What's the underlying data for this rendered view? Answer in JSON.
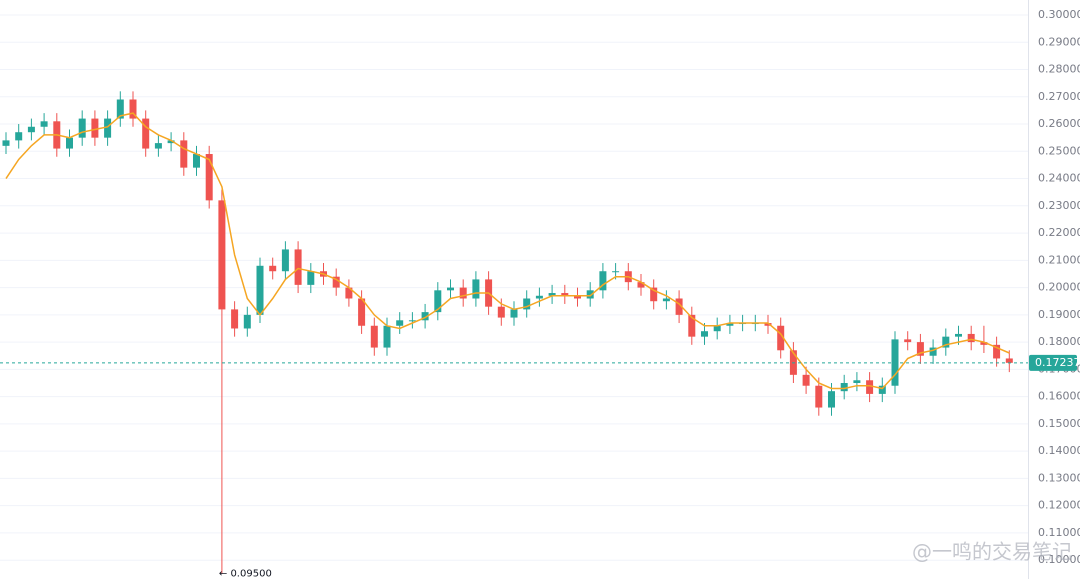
{
  "chart_data": {
    "type": "candlestick",
    "open": [
      0.252,
      0.254,
      0.257,
      0.259,
      0.261,
      0.251,
      0.255,
      0.262,
      0.255,
      0.262,
      0.269,
      0.262,
      0.251,
      0.253,
      0.254,
      0.244,
      0.249,
      0.232,
      0.192,
      0.185,
      0.19,
      0.208,
      0.206,
      0.214,
      0.201,
      0.206,
      0.204,
      0.2,
      0.196,
      0.186,
      0.178,
      0.186,
      0.188,
      0.188,
      0.191,
      0.199,
      0.2,
      0.196,
      0.203,
      0.193,
      0.189,
      0.192,
      0.196,
      0.197,
      0.198,
      0.197,
      0.196,
      0.199,
      0.206,
      0.206,
      0.202,
      0.2,
      0.195,
      0.196,
      0.19,
      0.182,
      0.184,
      0.186,
      0.187,
      0.187,
      0.187,
      0.186,
      0.177,
      0.168,
      0.164,
      0.156,
      0.162,
      0.165,
      0.166,
      0.161,
      0.164,
      0.181,
      0.18,
      0.175,
      0.178,
      0.182,
      0.183,
      0.18,
      0.179,
      0.174
    ],
    "high": [
      0.257,
      0.26,
      0.262,
      0.264,
      0.264,
      0.258,
      0.265,
      0.265,
      0.265,
      0.272,
      0.272,
      0.265,
      0.256,
      0.257,
      0.257,
      0.252,
      0.252,
      0.236,
      0.195,
      0.193,
      0.211,
      0.211,
      0.217,
      0.217,
      0.209,
      0.209,
      0.207,
      0.203,
      0.199,
      0.189,
      0.189,
      0.191,
      0.191,
      0.194,
      0.202,
      0.203,
      0.203,
      0.206,
      0.206,
      0.196,
      0.195,
      0.199,
      0.2,
      0.201,
      0.201,
      0.2,
      0.202,
      0.209,
      0.209,
      0.209,
      0.205,
      0.203,
      0.199,
      0.199,
      0.193,
      0.187,
      0.189,
      0.19,
      0.19,
      0.19,
      0.19,
      0.189,
      0.18,
      0.171,
      0.167,
      0.165,
      0.168,
      0.169,
      0.169,
      0.167,
      0.184,
      0.184,
      0.183,
      0.181,
      0.185,
      0.186,
      0.186,
      0.186,
      0.182,
      0.177
    ],
    "low": [
      0.249,
      0.251,
      0.254,
      0.256,
      0.248,
      0.248,
      0.252,
      0.252,
      0.252,
      0.259,
      0.259,
      0.248,
      0.248,
      0.25,
      0.241,
      0.241,
      0.229,
      0.095,
      0.182,
      0.182,
      0.187,
      0.203,
      0.203,
      0.198,
      0.198,
      0.201,
      0.197,
      0.193,
      0.183,
      0.175,
      0.175,
      0.183,
      0.185,
      0.185,
      0.188,
      0.196,
      0.193,
      0.193,
      0.19,
      0.186,
      0.186,
      0.189,
      0.193,
      0.194,
      0.194,
      0.193,
      0.193,
      0.196,
      0.203,
      0.199,
      0.197,
      0.192,
      0.192,
      0.187,
      0.179,
      0.179,
      0.181,
      0.183,
      0.184,
      0.184,
      0.183,
      0.174,
      0.165,
      0.161,
      0.153,
      0.153,
      0.159,
      0.162,
      0.158,
      0.158,
      0.161,
      0.177,
      0.172,
      0.172,
      0.175,
      0.179,
      0.177,
      0.176,
      0.171,
      0.169
    ],
    "close": [
      0.254,
      0.257,
      0.259,
      0.261,
      0.251,
      0.255,
      0.262,
      0.255,
      0.262,
      0.269,
      0.262,
      0.251,
      0.253,
      0.254,
      0.244,
      0.249,
      0.232,
      0.192,
      0.185,
      0.19,
      0.208,
      0.206,
      0.214,
      0.201,
      0.206,
      0.204,
      0.2,
      0.196,
      0.186,
      0.178,
      0.186,
      0.188,
      0.188,
      0.191,
      0.199,
      0.2,
      0.196,
      0.203,
      0.193,
      0.189,
      0.192,
      0.196,
      0.197,
      0.198,
      0.197,
      0.196,
      0.199,
      0.206,
      0.206,
      0.202,
      0.2,
      0.195,
      0.196,
      0.19,
      0.182,
      0.184,
      0.186,
      0.187,
      0.187,
      0.187,
      0.186,
      0.177,
      0.168,
      0.164,
      0.156,
      0.162,
      0.165,
      0.166,
      0.161,
      0.164,
      0.181,
      0.18,
      0.175,
      0.178,
      0.182,
      0.183,
      0.18,
      0.179,
      0.174,
      0.1724
    ],
    "ma_values": [
      0.24,
      0.247,
      0.252,
      0.256,
      0.256,
      0.255,
      0.257,
      0.258,
      0.259,
      0.263,
      0.264,
      0.259,
      0.256,
      0.254,
      0.251,
      0.249,
      0.247,
      0.237,
      0.212,
      0.196,
      0.19,
      0.196,
      0.203,
      0.207,
      0.206,
      0.205,
      0.203,
      0.2,
      0.196,
      0.19,
      0.186,
      0.185,
      0.187,
      0.189,
      0.192,
      0.196,
      0.197,
      0.198,
      0.198,
      0.194,
      0.192,
      0.193,
      0.195,
      0.197,
      0.197,
      0.197,
      0.197,
      0.201,
      0.204,
      0.204,
      0.202,
      0.199,
      0.197,
      0.194,
      0.189,
      0.186,
      0.186,
      0.187,
      0.187,
      0.187,
      0.187,
      0.183,
      0.176,
      0.17,
      0.165,
      0.163,
      0.163,
      0.164,
      0.164,
      0.163,
      0.168,
      0.174,
      0.176,
      0.177,
      0.179,
      0.18,
      0.181,
      0.18,
      0.178,
      0.176
    ],
    "up_color": "#26a69a",
    "down_color": "#ef5350",
    "ma_color": "#f5a623",
    "ylim": [
      0.0931,
      0.3055
    ],
    "yticks": [
      {
        "value": 0.1,
        "label": "0.10000"
      },
      {
        "value": 0.11,
        "label": "0.11000"
      },
      {
        "value": 0.12,
        "label": "0.12000"
      },
      {
        "value": 0.13,
        "label": "0.13000"
      },
      {
        "value": 0.14,
        "label": "0.14000"
      },
      {
        "value": 0.15,
        "label": "0.15000"
      },
      {
        "value": 0.16,
        "label": "0.16000"
      },
      {
        "value": 0.17,
        "label": "0.17000"
      },
      {
        "value": 0.18,
        "label": "0.18000"
      },
      {
        "value": 0.19,
        "label": "0.19000"
      },
      {
        "value": 0.2,
        "label": "0.20000"
      },
      {
        "value": 0.21,
        "label": "0.21000"
      },
      {
        "value": 0.22,
        "label": "0.22000"
      },
      {
        "value": 0.23,
        "label": "0.23000"
      },
      {
        "value": 0.24,
        "label": "0.24000"
      },
      {
        "value": 0.25,
        "label": "0.25000"
      },
      {
        "value": 0.26,
        "label": "0.26000"
      },
      {
        "value": 0.27,
        "label": "0.27000"
      },
      {
        "value": 0.28,
        "label": "0.28000"
      },
      {
        "value": 0.29,
        "label": "0.29000"
      },
      {
        "value": 0.3,
        "label": "0.30000"
      }
    ],
    "grid": true,
    "last_price": 0.17237,
    "last_price_color": "#26a69a",
    "low_marker": {
      "value": 0.095,
      "label": "← 0.09500"
    },
    "watermark": "@一鸣的交易笔记"
  }
}
